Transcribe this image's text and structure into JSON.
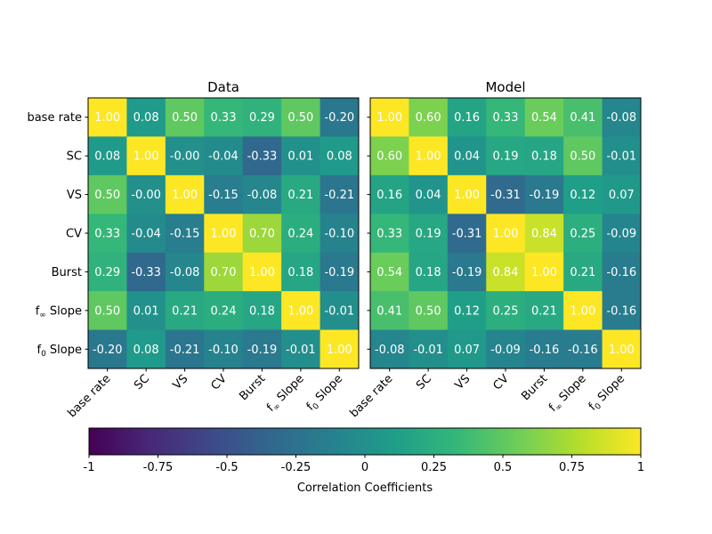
{
  "chart_data": [
    {
      "type": "heatmap",
      "title": "Data",
      "row_labels": [
        "base rate",
        "SC",
        "VS",
        "CV",
        "Burst",
        "f∞ Slope",
        "f0 Slope"
      ],
      "col_labels": [
        "base rate",
        "SC",
        "VS",
        "CV",
        "Burst",
        "f∞ Slope",
        "f0 Slope"
      ],
      "values": [
        [
          1.0,
          0.08,
          0.5,
          0.33,
          0.29,
          0.5,
          -0.2
        ],
        [
          0.08,
          1.0,
          -0.0,
          -0.04,
          -0.33,
          0.01,
          0.08
        ],
        [
          0.5,
          -0.0,
          1.0,
          -0.15,
          -0.08,
          0.21,
          -0.21
        ],
        [
          0.33,
          -0.04,
          -0.15,
          1.0,
          0.7,
          0.24,
          -0.1
        ],
        [
          0.29,
          -0.33,
          -0.08,
          0.7,
          1.0,
          0.18,
          -0.19
        ],
        [
          0.5,
          0.01,
          0.21,
          0.24,
          0.18,
          1.0,
          -0.01
        ],
        [
          -0.2,
          0.08,
          -0.21,
          -0.1,
          -0.19,
          -0.01,
          1.0
        ]
      ],
      "cell_text": [
        [
          "1.00",
          "0.08",
          "0.50",
          "0.33",
          "0.29",
          "0.50",
          "-0.20"
        ],
        [
          "0.08",
          "1.00",
          "-0.00",
          "-0.04",
          "-0.33",
          "0.01",
          "0.08"
        ],
        [
          "0.50",
          "-0.00",
          "1.00",
          "-0.15",
          "-0.08",
          "0.21",
          "-0.21"
        ],
        [
          "0.33",
          "-0.04",
          "-0.15",
          "1.00",
          "0.70",
          "0.24",
          "-0.10"
        ],
        [
          "0.29",
          "-0.33",
          "-0.08",
          "0.70",
          "1.00",
          "0.18",
          "-0.19"
        ],
        [
          "0.50",
          "0.01",
          "0.21",
          "0.24",
          "0.18",
          "1.00",
          "-0.01"
        ],
        [
          "-0.20",
          "0.08",
          "-0.21",
          "-0.10",
          "-0.19",
          "-0.01",
          "1.00"
        ]
      ]
    },
    {
      "type": "heatmap",
      "title": "Model",
      "row_labels": [
        "base rate",
        "SC",
        "VS",
        "CV",
        "Burst",
        "f∞ Slope",
        "f0 Slope"
      ],
      "col_labels": [
        "base rate",
        "SC",
        "VS",
        "CV",
        "Burst",
        "f∞ Slope",
        "f0 Slope"
      ],
      "values": [
        [
          1.0,
          0.6,
          0.16,
          0.33,
          0.54,
          0.41,
          -0.08
        ],
        [
          0.6,
          1.0,
          0.04,
          0.19,
          0.18,
          0.5,
          -0.01
        ],
        [
          0.16,
          0.04,
          1.0,
          -0.31,
          -0.19,
          0.12,
          0.07
        ],
        [
          0.33,
          0.19,
          -0.31,
          1.0,
          0.84,
          0.25,
          -0.09
        ],
        [
          0.54,
          0.18,
          -0.19,
          0.84,
          1.0,
          0.21,
          -0.16
        ],
        [
          0.41,
          0.5,
          0.12,
          0.25,
          0.21,
          1.0,
          -0.16
        ],
        [
          -0.08,
          -0.01,
          0.07,
          -0.09,
          -0.16,
          -0.16,
          1.0
        ]
      ],
      "cell_text": [
        [
          "1.00",
          "0.60",
          "0.16",
          "0.33",
          "0.54",
          "0.41",
          "-0.08"
        ],
        [
          "0.60",
          "1.00",
          "0.04",
          "0.19",
          "0.18",
          "0.50",
          "-0.01"
        ],
        [
          "0.16",
          "0.04",
          "1.00",
          "-0.31",
          "-0.19",
          "0.12",
          "0.07"
        ],
        [
          "0.33",
          "0.19",
          "-0.31",
          "1.00",
          "0.84",
          "0.25",
          "-0.09"
        ],
        [
          "0.54",
          "0.18",
          "-0.19",
          "0.84",
          "1.00",
          "0.21",
          "-0.16"
        ],
        [
          "0.41",
          "0.50",
          "0.12",
          "0.25",
          "0.21",
          "1.00",
          "-0.16"
        ],
        [
          "-0.08",
          "-0.01",
          "0.07",
          "-0.09",
          "-0.16",
          "-0.16",
          "1.00"
        ]
      ]
    }
  ],
  "colorbar": {
    "label": "Correlation Coefficients",
    "range": [
      -1,
      1
    ],
    "ticks": [
      -1,
      -0.75,
      -0.5,
      -0.25,
      0,
      0.25,
      0.5,
      0.75,
      1
    ],
    "tick_labels": [
      "-1",
      "-0.75",
      "-0.5",
      "-0.25",
      "0",
      "0.25",
      "0.5",
      "0.75",
      "1"
    ],
    "colormap": "viridis",
    "colors": [
      "#440154",
      "#482878",
      "#3e4989",
      "#31688e",
      "#26828e",
      "#1f9e89",
      "#35b779",
      "#6ece58",
      "#b5de2b",
      "#fde725"
    ]
  }
}
